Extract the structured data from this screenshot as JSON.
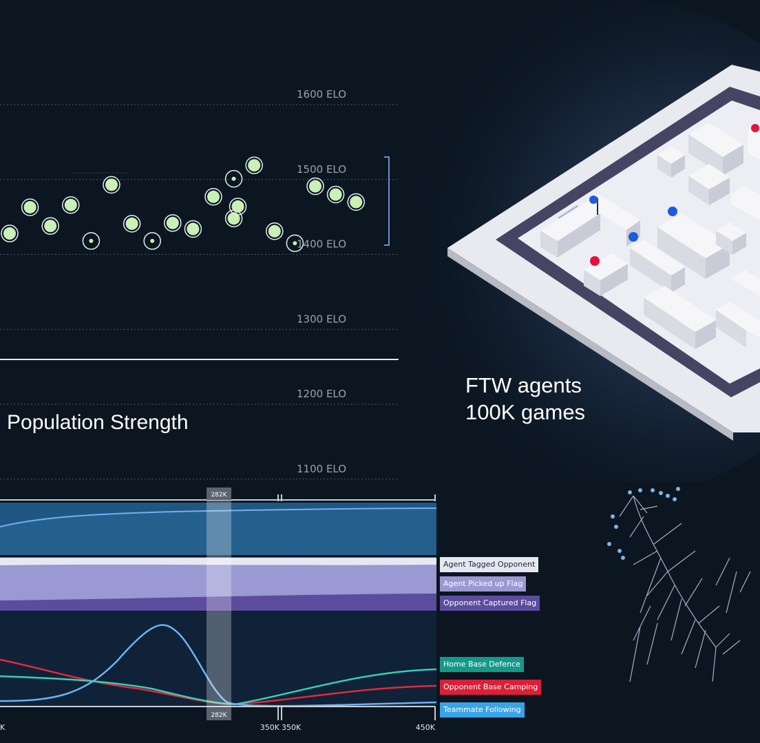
{
  "elo_chart": {
    "title": "Population Strength",
    "tick_labels": [
      "1600 ELO",
      "1500 ELO",
      "1400 ELO",
      "1300 ELO",
      "1200 ELO",
      "1100 ELO"
    ],
    "chart_data": {
      "type": "scatter",
      "title": "Population Strength",
      "ylabel": "",
      "y_ticks": [
        1600,
        1500,
        1400,
        1300,
        1200,
        1100
      ],
      "ylim": [
        1080,
        1640
      ],
      "points": [
        {
          "x": 0,
          "y": 1428,
          "style": "filled"
        },
        {
          "x": 1,
          "y": 1463,
          "style": "filled"
        },
        {
          "x": 2,
          "y": 1438,
          "style": "filled"
        },
        {
          "x": 3,
          "y": 1466,
          "style": "filled"
        },
        {
          "x": 4,
          "y": 1418,
          "style": "ring"
        },
        {
          "x": 5,
          "y": 1493,
          "style": "filled"
        },
        {
          "x": 6,
          "y": 1441,
          "style": "filled"
        },
        {
          "x": 7,
          "y": 1418,
          "style": "ring"
        },
        {
          "x": 8,
          "y": 1442,
          "style": "filled"
        },
        {
          "x": 9,
          "y": 1434,
          "style": "filled"
        },
        {
          "x": 10,
          "y": 1477,
          "style": "filled"
        },
        {
          "x": 11,
          "y": 1448,
          "style": "filled"
        },
        {
          "x": 11,
          "y": 1501,
          "style": "ring"
        },
        {
          "x": 11.2,
          "y": 1464,
          "style": "filled"
        },
        {
          "x": 12,
          "y": 1519,
          "style": "filled"
        },
        {
          "x": 13,
          "y": 1431,
          "style": "filled"
        },
        {
          "x": 14,
          "y": 1415,
          "style": "ring"
        },
        {
          "x": 15,
          "y": 1491,
          "style": "filled"
        },
        {
          "x": 16,
          "y": 1480,
          "style": "filled"
        },
        {
          "x": 17,
          "y": 1470,
          "style": "filled"
        }
      ]
    }
  },
  "map_caption": {
    "line1": "FTW agents",
    "line2": "100K games"
  },
  "timeline": {
    "x_labels": [
      "K",
      "350K",
      "350K",
      "450K"
    ],
    "marker_label": "282K",
    "chart_data": {
      "type": "area",
      "x_ticks": [
        "350K",
        "450K"
      ],
      "marker": "282K",
      "series": [
        {
          "name": "Agent Tagged Opponent"
        },
        {
          "name": "Agent Picked up Flag"
        },
        {
          "name": "Opponent Captured Flag"
        },
        {
          "name": "Home Base Defence"
        },
        {
          "name": "Opponent Base Camping"
        },
        {
          "name": "Teammate Following"
        }
      ]
    },
    "legend": [
      {
        "label": "Agent Tagged Opponent",
        "bg": "#e6e8f1",
        "fg": "#1c2230"
      },
      {
        "label": "Agent Picked up Flag",
        "bg": "#9a99d3",
        "fg": "#ffffff"
      },
      {
        "label": "Opponent Captured Flag",
        "bg": "#5c4c9e",
        "fg": "#ffffff"
      },
      {
        "label": "Home Base Defence",
        "bg": "#15998a",
        "fg": "#ffffff"
      },
      {
        "label": "Opponent Base Camping",
        "bg": "#db1f36",
        "fg": "#ffffff"
      },
      {
        "label": "Teammate Following",
        "bg": "#39a3e6",
        "fg": "#ffffff"
      }
    ]
  },
  "colors": {
    "background": "#0b1621",
    "point_fill": "#c9f0b5",
    "blue_band": "#1f5782",
    "line_blue": "#6fb2f2",
    "line_red": "#e8283a",
    "line_teal": "#38cfb2"
  }
}
